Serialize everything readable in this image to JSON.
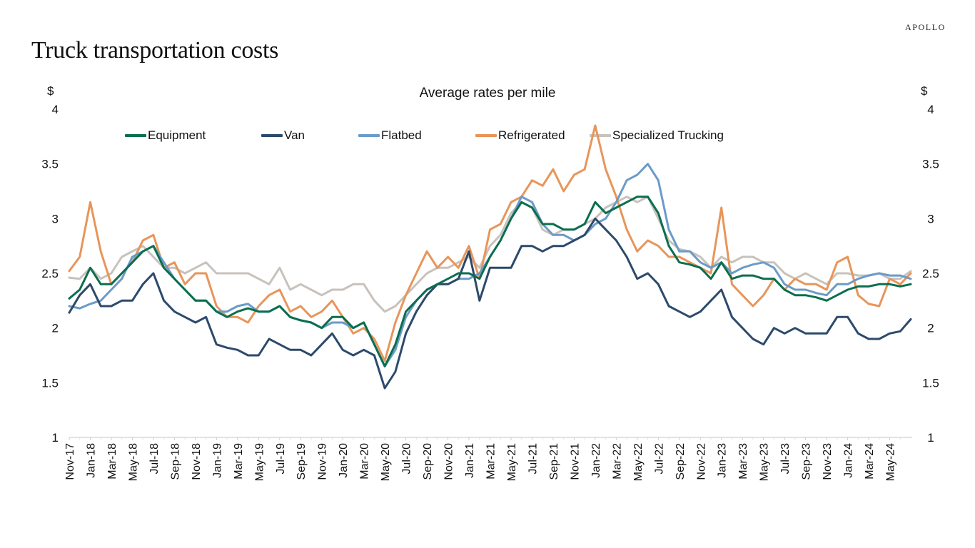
{
  "brand": "APOLLO",
  "page_title": "Truck transportation costs",
  "chart_data": {
    "type": "line",
    "title": "Average rates per mile",
    "ylabel_left": "$",
    "ylabel_right": "$",
    "xlabel": "",
    "ylim": [
      1,
      4
    ],
    "yticks": [
      1,
      1.5,
      2,
      2.5,
      3,
      3.5,
      4
    ],
    "ytick_labels": [
      "1",
      "1.5",
      "2",
      "2.5",
      "3",
      "3.5",
      "4"
    ],
    "grid": false,
    "legend_position": "top",
    "x_start": "Nov-17",
    "x_end": "Jul-24",
    "x_frequency": "monthly",
    "xtick_labels": [
      "Nov-17",
      "Jan-18",
      "Mar-18",
      "May-18",
      "Jul-18",
      "Sep-18",
      "Nov-18",
      "Jan-19",
      "Mar-19",
      "May-19",
      "Jul-19",
      "Sep-19",
      "Nov-19",
      "Jan-20",
      "Mar-20",
      "May-20",
      "Jul-20",
      "Sep-20",
      "Nov-20",
      "Jan-21",
      "Mar-21",
      "May-21",
      "Jul-21",
      "Sep-21",
      "Nov-21",
      "Jan-22",
      "Mar-22",
      "May-22",
      "Jul-22",
      "Sep-22",
      "Nov-22",
      "Jan-23",
      "Mar-23",
      "May-23",
      "Jul-23",
      "Sep-23",
      "Nov-23",
      "Jan-24",
      "Mar-24",
      "May-24"
    ],
    "series": [
      {
        "name": "Equipment",
        "color": "#0b6e4f",
        "values": [
          2.27,
          2.35,
          2.55,
          2.4,
          2.4,
          2.5,
          2.6,
          2.7,
          2.75,
          2.55,
          2.45,
          2.35,
          2.25,
          2.25,
          2.15,
          2.1,
          2.15,
          2.18,
          2.15,
          2.15,
          2.2,
          2.1,
          2.07,
          2.05,
          2.0,
          2.1,
          2.1,
          2.0,
          2.05,
          1.85,
          1.65,
          1.85,
          2.15,
          2.25,
          2.35,
          2.4,
          2.45,
          2.5,
          2.5,
          2.45,
          2.65,
          2.8,
          3.0,
          3.15,
          3.1,
          2.95,
          2.95,
          2.9,
          2.9,
          2.95,
          3.15,
          3.05,
          3.1,
          3.15,
          3.2,
          3.2,
          3.05,
          2.75,
          2.6,
          2.58,
          2.55,
          2.45,
          2.6,
          2.45,
          2.48,
          2.48,
          2.45,
          2.45,
          2.35,
          2.3,
          2.3,
          2.28,
          2.25,
          2.3,
          2.35,
          2.38,
          2.38,
          2.4,
          2.4,
          2.38,
          2.4
        ]
      },
      {
        "name": "Van",
        "color": "#2c4a6b",
        "values": [
          2.14,
          2.3,
          2.4,
          2.2,
          2.2,
          2.25,
          2.25,
          2.4,
          2.5,
          2.25,
          2.15,
          2.1,
          2.05,
          2.1,
          1.85,
          1.82,
          1.8,
          1.75,
          1.75,
          1.9,
          1.85,
          1.8,
          1.8,
          1.75,
          1.85,
          1.95,
          1.8,
          1.75,
          1.8,
          1.75,
          1.45,
          1.6,
          1.95,
          2.15,
          2.3,
          2.4,
          2.4,
          2.45,
          2.7,
          2.25,
          2.55,
          2.55,
          2.55,
          2.75,
          2.75,
          2.7,
          2.75,
          2.75,
          2.8,
          2.85,
          3.0,
          2.9,
          2.8,
          2.65,
          2.45,
          2.5,
          2.4,
          2.2,
          2.15,
          2.1,
          2.15,
          2.25,
          2.35,
          2.1,
          2.0,
          1.9,
          1.85,
          2.0,
          1.95,
          2.0,
          1.95,
          1.95,
          1.95,
          2.1,
          2.1,
          1.95,
          1.9,
          1.9,
          1.95,
          1.97,
          2.08
        ]
      },
      {
        "name": "Flatbed",
        "color": "#6b9bc8",
        "values": [
          2.2,
          2.18,
          2.22,
          2.25,
          2.35,
          2.45,
          2.65,
          2.7,
          2.75,
          2.6,
          2.45,
          2.35,
          2.25,
          2.25,
          2.15,
          2.15,
          2.2,
          2.22,
          2.15,
          2.15,
          2.2,
          2.1,
          2.07,
          2.05,
          2.0,
          2.05,
          2.05,
          2.0,
          2.05,
          1.85,
          1.65,
          1.8,
          2.1,
          2.25,
          2.35,
          2.4,
          2.4,
          2.45,
          2.45,
          2.5,
          2.65,
          2.8,
          3.0,
          3.2,
          3.15,
          2.95,
          2.85,
          2.85,
          2.8,
          2.85,
          2.95,
          3.0,
          3.15,
          3.35,
          3.4,
          3.5,
          3.35,
          2.9,
          2.7,
          2.7,
          2.6,
          2.55,
          2.6,
          2.5,
          2.55,
          2.58,
          2.6,
          2.55,
          2.4,
          2.35,
          2.35,
          2.32,
          2.3,
          2.4,
          2.4,
          2.45,
          2.48,
          2.5,
          2.48,
          2.48,
          2.45
        ]
      },
      {
        "name": "Refrigerated",
        "color": "#e8955a",
        "values": [
          2.52,
          2.65,
          3.15,
          2.7,
          2.4,
          2.5,
          2.6,
          2.8,
          2.85,
          2.55,
          2.6,
          2.4,
          2.5,
          2.5,
          2.2,
          2.1,
          2.1,
          2.05,
          2.2,
          2.3,
          2.35,
          2.15,
          2.2,
          2.1,
          2.15,
          2.25,
          2.1,
          1.95,
          2.0,
          1.9,
          1.7,
          2.05,
          2.3,
          2.5,
          2.7,
          2.55,
          2.65,
          2.55,
          2.75,
          2.45,
          2.9,
          2.95,
          3.15,
          3.2,
          3.35,
          3.3,
          3.45,
          3.25,
          3.4,
          3.45,
          3.85,
          3.45,
          3.2,
          2.9,
          2.7,
          2.8,
          2.75,
          2.65,
          2.65,
          2.6,
          2.55,
          2.5,
          3.1,
          2.4,
          2.3,
          2.2,
          2.3,
          2.45,
          2.35,
          2.45,
          2.4,
          2.4,
          2.35,
          2.6,
          2.65,
          2.3,
          2.22,
          2.2,
          2.45,
          2.4,
          2.5
        ]
      },
      {
        "name": "Specialized Trucking",
        "color": "#c8c2bc",
        "values": [
          2.46,
          2.45,
          2.55,
          2.45,
          2.5,
          2.65,
          2.7,
          2.75,
          2.65,
          2.55,
          2.55,
          2.5,
          2.55,
          2.6,
          2.5,
          2.5,
          2.5,
          2.5,
          2.45,
          2.4,
          2.55,
          2.35,
          2.4,
          2.35,
          2.3,
          2.35,
          2.35,
          2.4,
          2.4,
          2.25,
          2.15,
          2.2,
          2.3,
          2.4,
          2.5,
          2.55,
          2.55,
          2.6,
          2.65,
          2.55,
          2.75,
          2.85,
          3.05,
          3.15,
          3.1,
          2.9,
          2.85,
          2.9,
          2.9,
          2.95,
          3.0,
          3.1,
          3.15,
          3.2,
          3.15,
          3.2,
          3.0,
          2.8,
          2.72,
          2.7,
          2.65,
          2.55,
          2.65,
          2.6,
          2.65,
          2.65,
          2.6,
          2.6,
          2.5,
          2.45,
          2.5,
          2.45,
          2.4,
          2.5,
          2.5,
          2.48,
          2.48,
          2.5,
          2.45,
          2.45,
          2.52
        ]
      }
    ]
  }
}
